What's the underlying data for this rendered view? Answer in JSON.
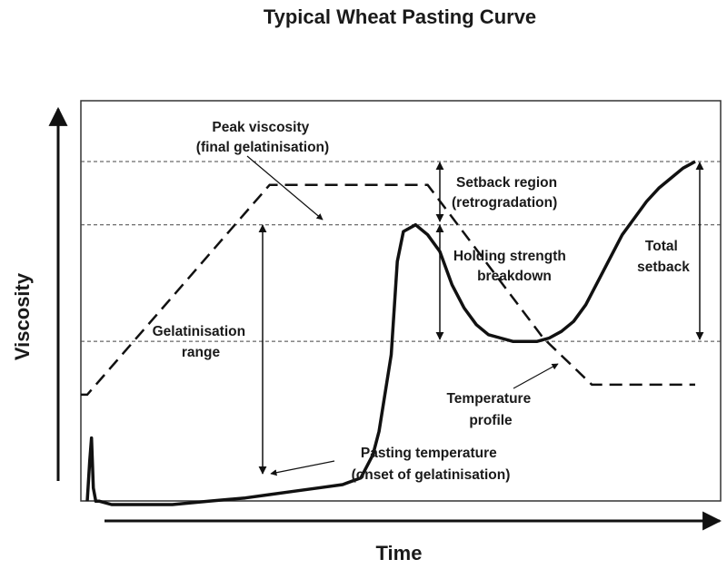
{
  "chart_data": {
    "type": "line",
    "title": "Typical Wheat Pasting Curve",
    "xlabel": "Time",
    "ylabel": "Viscosity",
    "xlim": [
      0,
      100
    ],
    "ylim": [
      0,
      100
    ],
    "grid": false,
    "legend": "none",
    "reference_lines": [
      {
        "name": "max-setback-level",
        "y": 100
      },
      {
        "name": "peak-level",
        "y": 81
      },
      {
        "name": "trough-level",
        "y": 46
      }
    ],
    "series": [
      {
        "style": "solid",
        "color": "#111111",
        "x": [
          0,
          0.4,
          0.7,
          1.0,
          1.4,
          2,
          4,
          8,
          14,
          20,
          26,
          30,
          34,
          38,
          42,
          45,
          47,
          48,
          50,
          51,
          52,
          54,
          56,
          58,
          60,
          62,
          64,
          66,
          68,
          70,
          72,
          74,
          76,
          78,
          80,
          82,
          84,
          86,
          88,
          90,
          92,
          94,
          96,
          98,
          100
        ],
        "values": [
          -2,
          10,
          17,
          2,
          -2,
          -2,
          -3,
          -3,
          -3,
          -2,
          -1,
          0,
          1,
          2,
          3,
          5,
          12,
          19,
          42,
          70,
          79,
          81,
          78,
          73,
          63,
          56,
          51,
          48,
          47,
          46,
          46,
          46,
          47,
          49,
          52,
          57,
          64,
          71,
          78,
          83,
          88,
          92,
          95,
          98,
          100
        ]
      },
      {
        "style": "dashed",
        "color": "#111111",
        "x": [
          0,
          30,
          56,
          75,
          83,
          100
        ],
        "values": [
          30,
          93,
          93,
          47,
          33,
          33
        ]
      }
    ],
    "annotations": {
      "peak": [
        "Peak viscosity",
        "(final gelatinisation)"
      ],
      "setback": [
        "Setback region",
        "(retrogradation)"
      ],
      "holding": [
        "Holding strength",
        "breakdown"
      ],
      "total": [
        "Total",
        "setback"
      ],
      "gel_range": [
        "Gelatinisation",
        "range"
      ],
      "temp_profile": [
        "Temperature",
        "profile"
      ],
      "pasting": [
        "Pasting  temperature",
        "(onset of gelatinisation)"
      ]
    }
  }
}
